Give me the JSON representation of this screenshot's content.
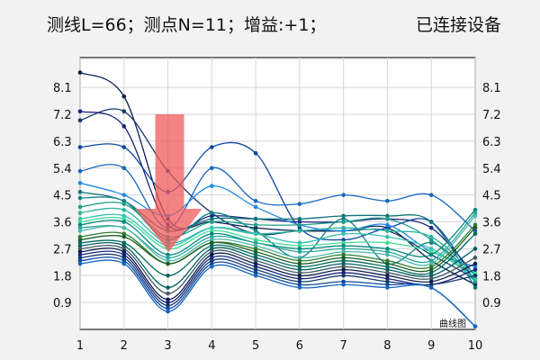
{
  "status": {
    "left_text": "测线L=66；测点N=11；增益:+1；",
    "right_text": "已连接设备"
  },
  "chart_data": {
    "type": "line",
    "x": [
      1,
      2,
      3,
      4,
      5,
      6,
      7,
      8,
      9,
      10
    ],
    "y_ticks": [
      0.9,
      1.8,
      2.7,
      3.6,
      4.5,
      5.4,
      6.3,
      7.2,
      8.1
    ],
    "x_ticks": [
      1,
      2,
      3,
      4,
      5,
      6,
      7,
      8,
      9,
      10
    ],
    "ylim": [
      0,
      9.1
    ],
    "xlim": [
      1,
      10
    ],
    "grid": true,
    "legend_label": "曲线图",
    "annotation": "red down arrow at x=3",
    "colors": [
      "#0b1f4d",
      "#1a237e",
      "#123a6b",
      "#0d47a1",
      "#1565c0",
      "#1e88e5",
      "#0d7377",
      "#138086",
      "#1f9e89",
      "#2bb5a0",
      "#35c2b0",
      "#3ddc97",
      "#00897b",
      "#26a69a",
      "#4db6ac",
      "#2e7d32",
      "#1b5e20",
      "#00695c",
      "#006064",
      "#455a64"
    ],
    "series": [
      {
        "values": [
          8.6,
          7.8,
          3.7,
          3.6,
          3.4,
          3.3,
          3.3,
          3.4,
          2.3,
          1.5
        ]
      },
      {
        "values": [
          7.3,
          6.8,
          3.5,
          3.8,
          3.7,
          3.6,
          3.6,
          3.7,
          3.4,
          1.8
        ]
      },
      {
        "values": [
          7.0,
          7.3,
          5.3,
          3.9,
          3.2,
          3.3,
          3.3,
          3.3,
          2.5,
          1.7
        ]
      },
      {
        "values": [
          6.1,
          6.1,
          4.6,
          6.1,
          5.9,
          3.4,
          3.0,
          3.4,
          3.6,
          1.6
        ]
      },
      {
        "values": [
          5.3,
          5.4,
          3.4,
          5.4,
          4.3,
          4.2,
          4.5,
          4.3,
          4.5,
          3.3
        ]
      },
      {
        "values": [
          4.9,
          4.5,
          3.8,
          4.8,
          4.1,
          3.5,
          3.3,
          3.5,
          2.6,
          2.1
        ]
      },
      {
        "values": [
          4.6,
          4.3,
          3.3,
          3.7,
          3.7,
          3.7,
          3.8,
          3.8,
          3.6,
          1.4
        ]
      },
      {
        "values": [
          4.4,
          4.3,
          3.0,
          3.9,
          3.3,
          2.4,
          3.7,
          2.2,
          2.9,
          1.7
        ]
      },
      {
        "values": [
          4.1,
          4.2,
          3.1,
          3.6,
          3.5,
          3.5,
          3.6,
          3.7,
          3.0,
          1.6
        ]
      },
      {
        "values": [
          3.9,
          4.0,
          2.9,
          3.4,
          3.2,
          3.3,
          3.4,
          3.3,
          3.1,
          1.8
        ]
      },
      {
        "values": [
          3.7,
          3.8,
          2.8,
          3.4,
          3.2,
          2.9,
          3.2,
          3.1,
          2.7,
          1.7
        ]
      },
      {
        "values": [
          3.6,
          3.7,
          2.7,
          3.3,
          3.0,
          2.8,
          2.9,
          2.9,
          2.6,
          1.9
        ]
      },
      {
        "values": [
          3.5,
          3.6,
          2.5,
          3.2,
          2.9,
          2.7,
          2.8,
          2.7,
          2.5,
          4.0
        ]
      },
      {
        "values": [
          3.4,
          3.4,
          2.4,
          3.1,
          2.9,
          2.6,
          2.7,
          2.6,
          2.3,
          3.9
        ]
      },
      {
        "values": [
          3.3,
          3.4,
          2.3,
          3.0,
          2.8,
          2.4,
          2.6,
          2.5,
          2.2,
          3.8
        ]
      },
      {
        "values": [
          3.1,
          3.2,
          2.2,
          2.9,
          2.7,
          2.3,
          2.5,
          2.3,
          2.1,
          3.5
        ]
      },
      {
        "values": [
          3.0,
          3.1,
          2.2,
          2.9,
          2.6,
          2.2,
          2.4,
          2.2,
          2.0,
          3.4
        ]
      },
      {
        "values": [
          2.9,
          2.9,
          1.8,
          2.8,
          2.5,
          2.1,
          2.3,
          2.1,
          1.9,
          3.2
        ]
      },
      {
        "values": [
          2.8,
          2.8,
          1.4,
          2.7,
          2.4,
          2.0,
          2.2,
          2.0,
          1.8,
          2.7
        ]
      },
      {
        "values": [
          2.7,
          2.7,
          1.2,
          2.6,
          2.3,
          1.9,
          2.1,
          1.9,
          1.7,
          2.4
        ]
      },
      {
        "values": [
          2.6,
          2.6,
          1.0,
          2.5,
          2.2,
          1.8,
          2.0,
          1.8,
          1.6,
          2.2
        ]
      },
      {
        "values": [
          2.5,
          2.5,
          0.9,
          2.4,
          2.1,
          1.7,
          1.9,
          1.7,
          1.5,
          2.0
        ]
      },
      {
        "values": [
          2.4,
          2.4,
          0.8,
          2.3,
          2.0,
          1.6,
          1.8,
          1.6,
          1.5,
          1.8
        ]
      },
      {
        "values": [
          2.3,
          2.3,
          0.7,
          2.2,
          1.9,
          1.5,
          1.6,
          1.5,
          1.4,
          0.1
        ]
      },
      {
        "values": [
          2.2,
          2.2,
          0.6,
          2.1,
          1.8,
          1.4,
          1.5,
          1.4,
          1.4,
          0.1
        ]
      }
    ]
  }
}
